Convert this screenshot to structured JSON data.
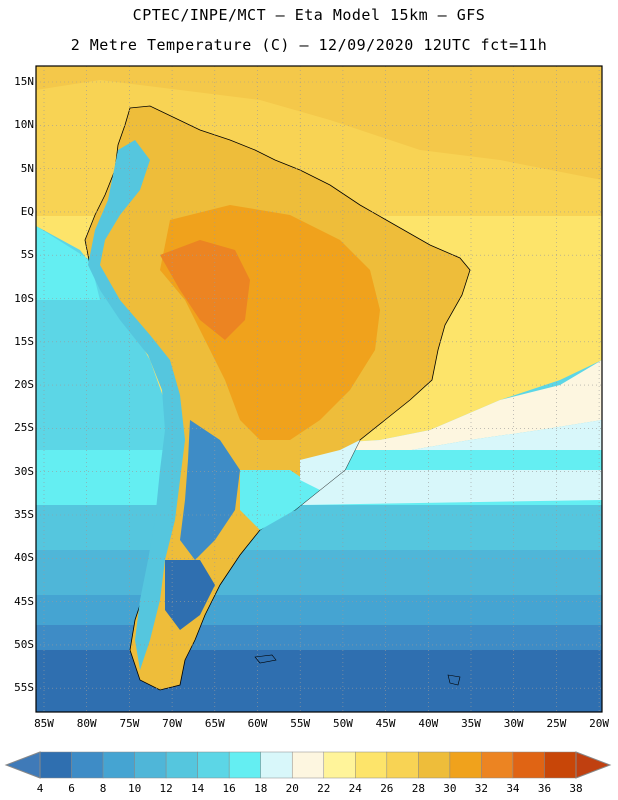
{
  "header": {
    "line1": "CPTEC/INPE/MCT –  Eta Model 15km – GFS",
    "line2": "2 Metre Temperature (C) – 12/09/2020 12UTC fct=11h"
  },
  "map": {
    "lat_labels": [
      "15N",
      "10N",
      "5N",
      "EQ",
      "5S",
      "10S",
      "15S",
      "20S",
      "25S",
      "30S",
      "35S",
      "40S",
      "45S",
      "50S",
      "55S"
    ],
    "lon_labels": [
      "85W",
      "80W",
      "75W",
      "70W",
      "65W",
      "60W",
      "55W",
      "50W",
      "45W",
      "40W",
      "35W",
      "30W",
      "25W",
      "20W"
    ]
  },
  "colorbar": {
    "ticks": [
      "4",
      "6",
      "8",
      "10",
      "12",
      "14",
      "16",
      "18",
      "20",
      "22",
      "24",
      "26",
      "28",
      "30",
      "32",
      "34",
      "36",
      "38"
    ],
    "colors": [
      "#2f6fb0",
      "#3e8cc6",
      "#45a4d2",
      "#4fb6d8",
      "#55c6de",
      "#5cd6e6",
      "#64eef2",
      "#d8f7fa",
      "#fdf6e0",
      "#fff49a",
      "#fde46a",
      "#f8d354",
      "#eebd3a",
      "#f0a21c",
      "#ec8422",
      "#e06414",
      "#c84608"
    ],
    "low_color": "#3f7ab8",
    "high_color": "#c04010"
  }
}
